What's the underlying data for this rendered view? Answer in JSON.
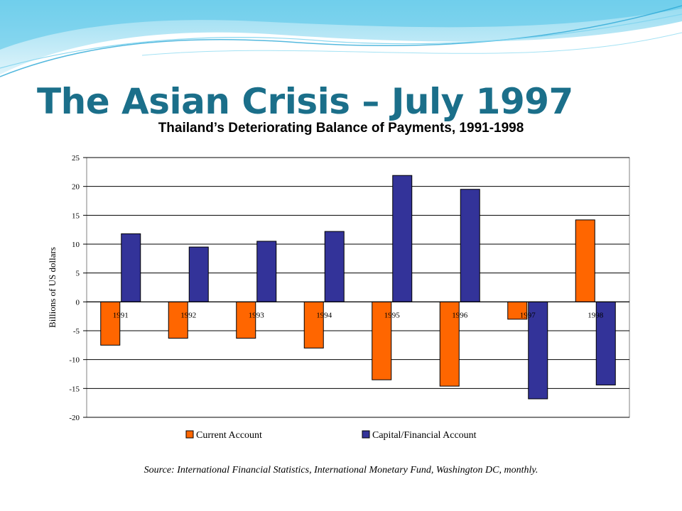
{
  "slide": {
    "title": "The Asian Crisis – July 1997",
    "source": "Source: International Financial Statistics, International Monetary Fund, Washington DC, monthly."
  },
  "colors": {
    "title": "#1b6f8a",
    "wave": "#4cc3e8",
    "current_account": "#ff6600",
    "capital_account": "#333399"
  },
  "chart_data": {
    "type": "bar",
    "title": "Thailand’s Deteriorating Balance of Payments, 1991-1998",
    "ylabel": "Billions of US dollars",
    "xlabel": "",
    "categories": [
      "1991",
      "1992",
      "1993",
      "1994",
      "1995",
      "1996",
      "1997",
      "1998"
    ],
    "ylim": [
      -20,
      25
    ],
    "yticks": [
      25,
      20,
      15,
      10,
      5,
      0,
      -5,
      -10,
      -15,
      -20
    ],
    "grid": true,
    "legend_position": "bottom",
    "series": [
      {
        "name": "Current Account",
        "values": [
          -7.5,
          -6.3,
          -6.3,
          -8.0,
          -13.5,
          -14.6,
          -3.0,
          14.2
        ]
      },
      {
        "name": "Capital/Financial Account",
        "values": [
          11.8,
          9.5,
          10.5,
          12.2,
          21.9,
          19.5,
          -16.8,
          -14.4
        ]
      }
    ]
  }
}
